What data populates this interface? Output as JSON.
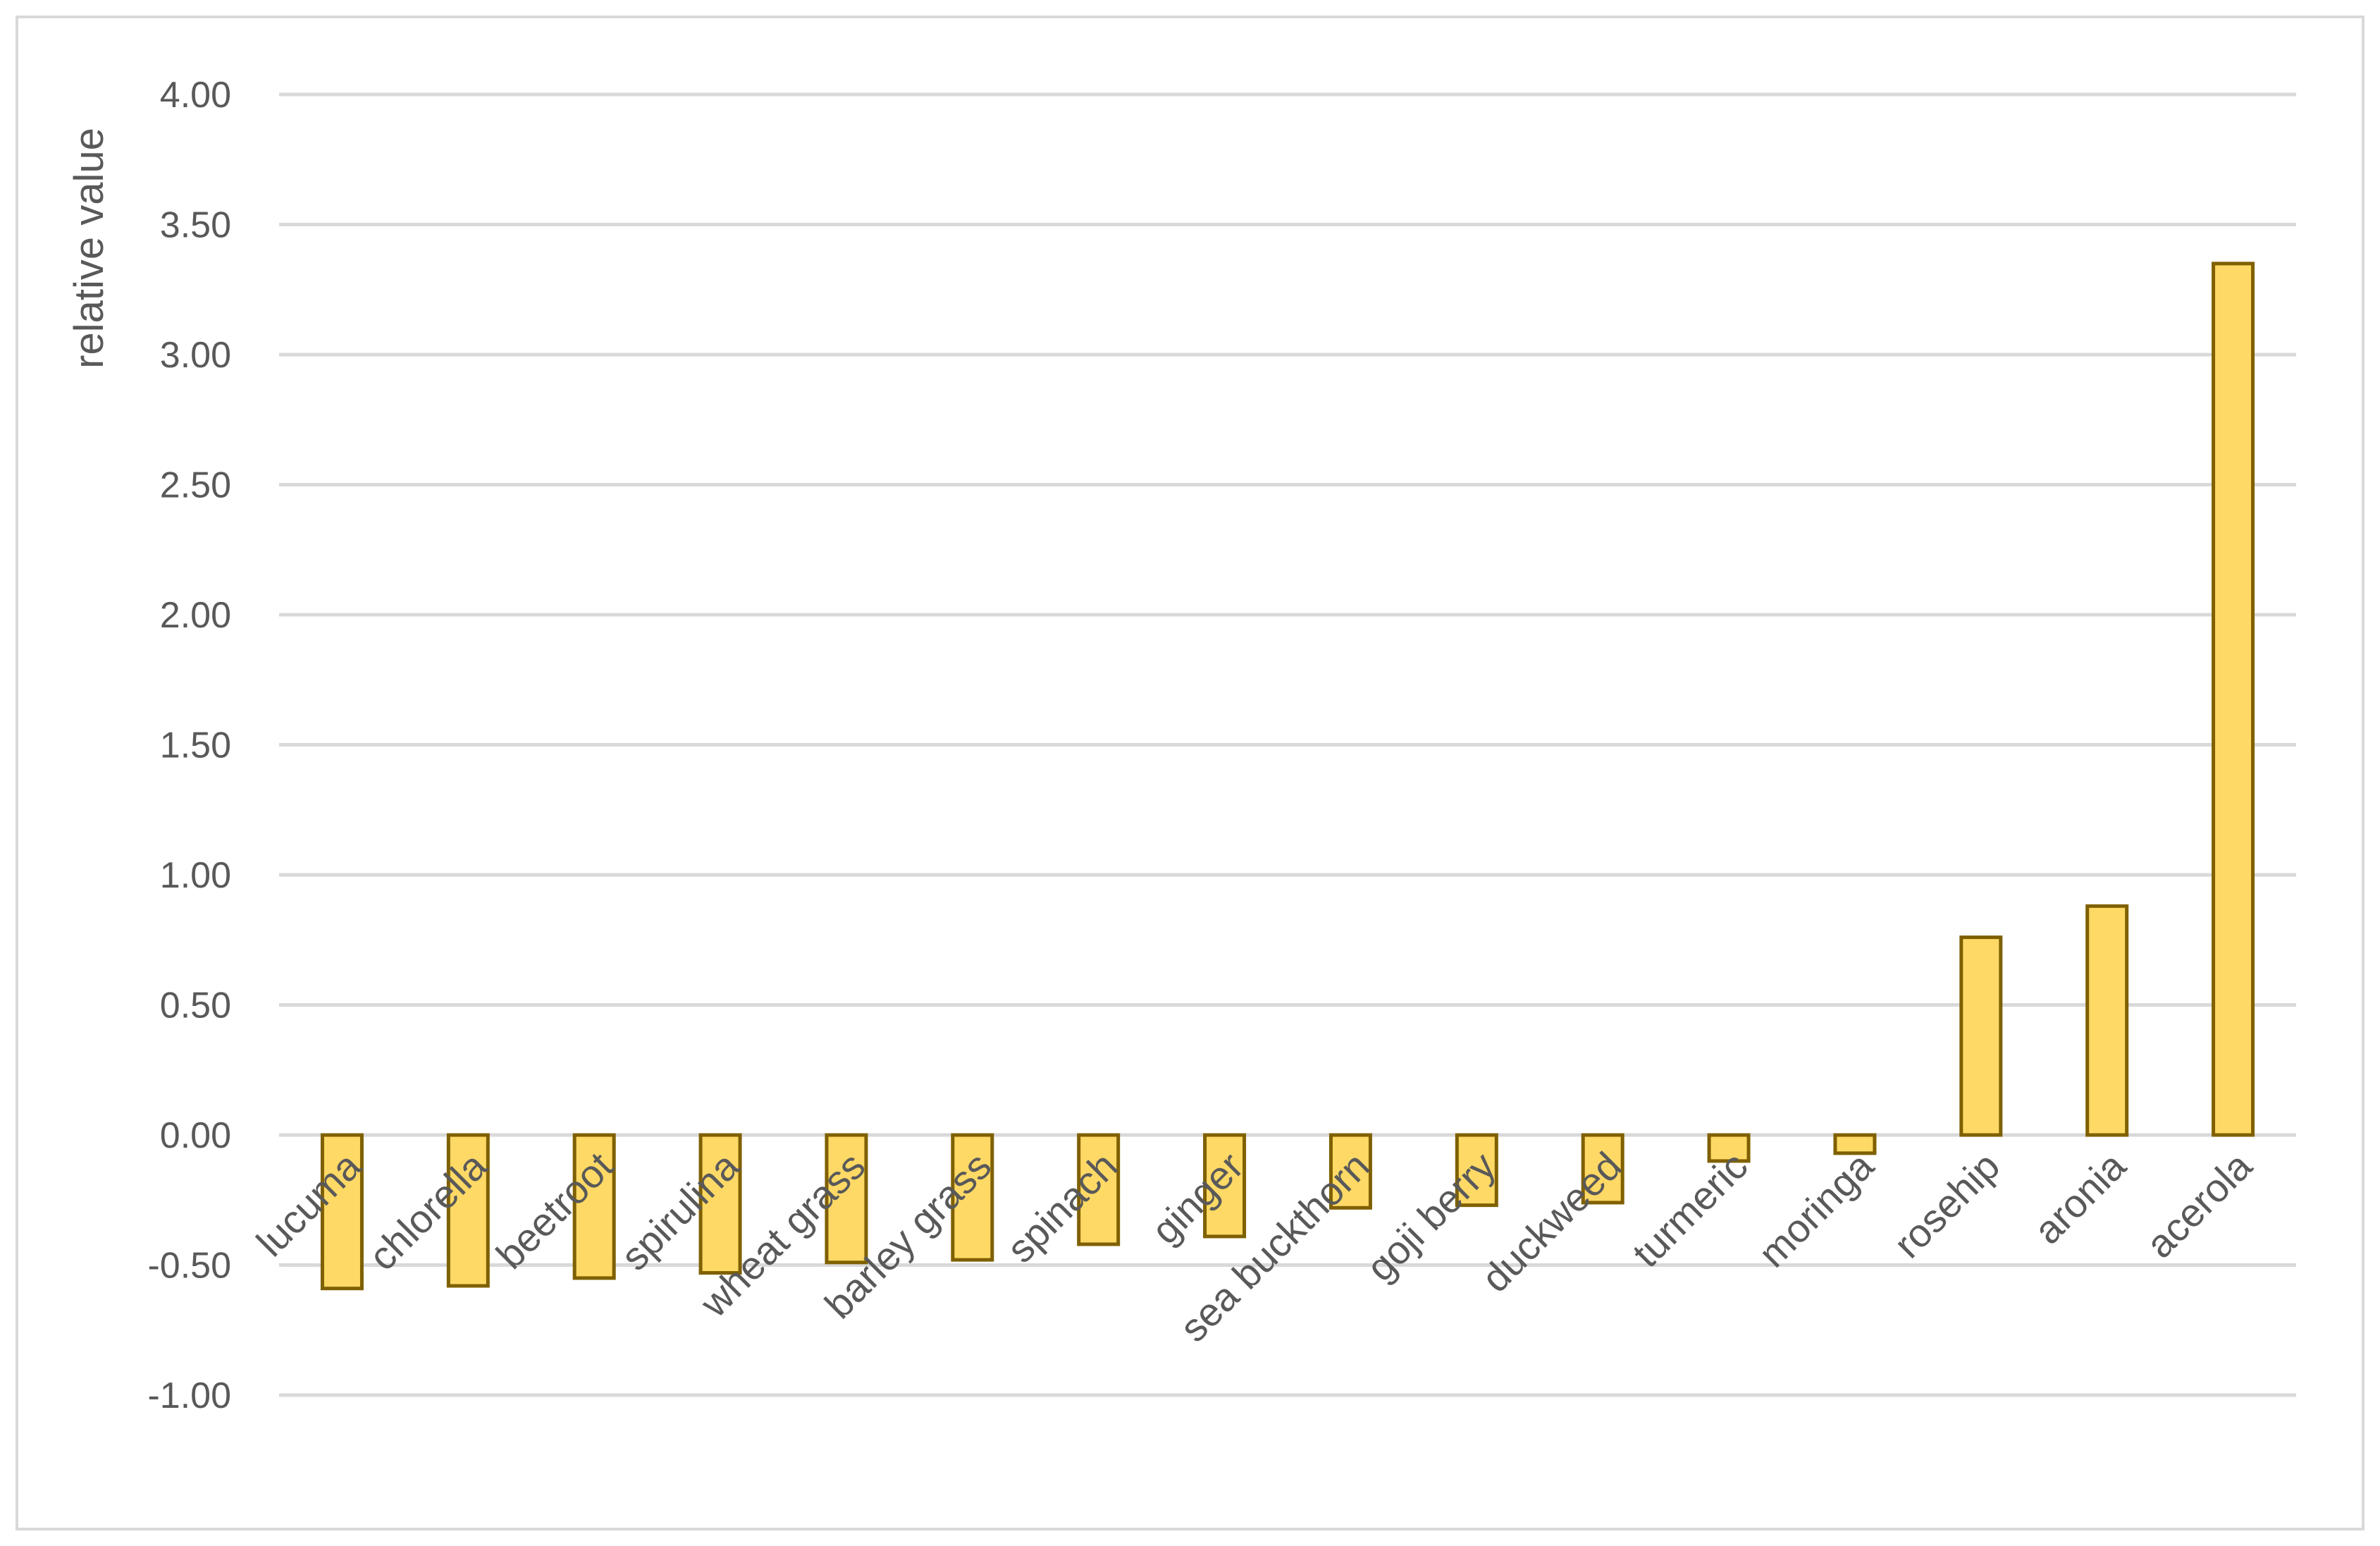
{
  "chart_data": {
    "type": "bar",
    "title": "",
    "xlabel": "",
    "ylabel": "relative value",
    "ylim": [
      -1.0,
      4.0
    ],
    "ytick_step": 0.5,
    "grid": true,
    "legend": "none",
    "colors": {
      "fill": "#FFD966",
      "stroke": "#7F6000",
      "grid": "#D9D9D9",
      "text": "#595959"
    },
    "categories": [
      "lucuma",
      "chlorella",
      "beetroot",
      "spirulina",
      "wheat grass",
      "barley grass",
      "spinach",
      "ginger",
      "sea buckthorn",
      "goji berry",
      "duckweed",
      "turmeric",
      "moringa",
      "rosehip",
      "aronia",
      "acerola"
    ],
    "values": [
      -0.59,
      -0.58,
      -0.55,
      -0.53,
      -0.49,
      -0.48,
      -0.42,
      -0.39,
      -0.28,
      -0.27,
      -0.26,
      -0.1,
      -0.07,
      0.76,
      0.88,
      3.35
    ]
  }
}
